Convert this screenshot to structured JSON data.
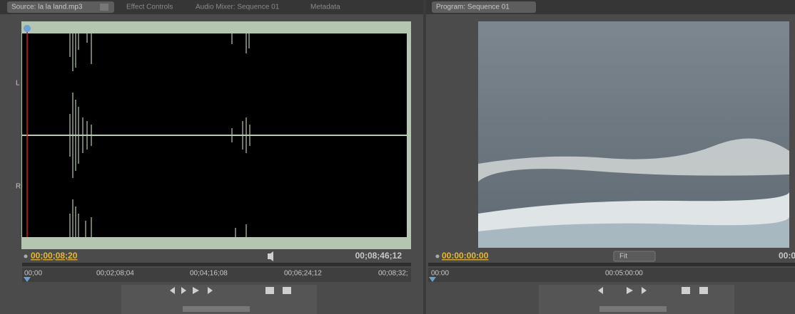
{
  "tabs": {
    "source": "Source: la la land.mp3",
    "effect_controls": "Effect Controls",
    "audio_mixer": "Audio Mixer: Sequence 01",
    "metadata": "Metadata",
    "program": "Program: Sequence 01"
  },
  "source": {
    "channel_labels": [
      "L",
      "R"
    ],
    "current_time": "00;00;08;20",
    "duration": "00;08;46;12",
    "ruler": [
      "00;00",
      "00;02;08;04",
      "00;04;16;08",
      "00;06;24;12",
      "00;08;32;"
    ]
  },
  "program": {
    "current_time": "00:00:00:00",
    "zoom": "Fit",
    "duration": "00:0",
    "ruler": [
      "00:00",
      "00:05:00:00"
    ]
  }
}
